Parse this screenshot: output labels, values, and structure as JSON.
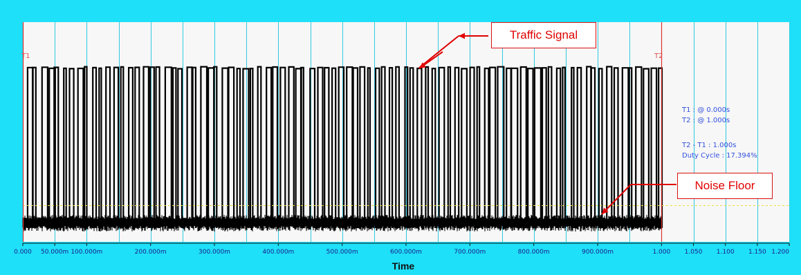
{
  "chart_data": {
    "type": "line",
    "title": "",
    "xlabel": "Time",
    "ylabel": "",
    "xlim": [
      0.0,
      1.2
    ],
    "x_ticks": [
      "0.000",
      "50.000m",
      "100.000m",
      "200.000m",
      "300.000m",
      "400.000m",
      "500.000m",
      "600.000m",
      "700.000m",
      "800.000m",
      "900.000m",
      "1.000",
      "1.050",
      "1.100",
      "1.150",
      "1.200"
    ],
    "x_tick_values": [
      0.0,
      0.05,
      0.1,
      0.2,
      0.3,
      0.4,
      0.5,
      0.6,
      0.7,
      0.8,
      0.9,
      1.0,
      1.05,
      1.1,
      1.15,
      1.2
    ],
    "grid": true,
    "series": [
      {
        "signal_start_s": 0.0,
        "signal_end_s": 1.0,
        "burst_count": 88,
        "high_level": 1.0,
        "noise_floor_level": 0.0,
        "duty_cycle_percent": 17.394
      }
    ],
    "threshold_line": {
      "style": "dashed",
      "color": "#e8e040"
    },
    "cursors": [
      {
        "label": "T1",
        "x": 0.0
      },
      {
        "label": "T2",
        "x": 1.0
      }
    ]
  },
  "cursor_info": {
    "t1_line": "T1 : @ 0.000s",
    "t2_line": "T2 : @ 1.000s",
    "delta_line": "T2 - T1 : 1.000s",
    "duty_line": "Duty Cycle : 17.394%"
  },
  "annotations": {
    "traffic_signal": "Traffic Signal",
    "noise_floor": "Noise Floor"
  },
  "colors": {
    "frame": "#1ee0f8",
    "plot_bg": "#f7f7f7",
    "grid": "#30c8e0",
    "signal": "#000000",
    "cursor": "#e03030",
    "annotation": "#e00000",
    "info_text": "#3050e0"
  }
}
